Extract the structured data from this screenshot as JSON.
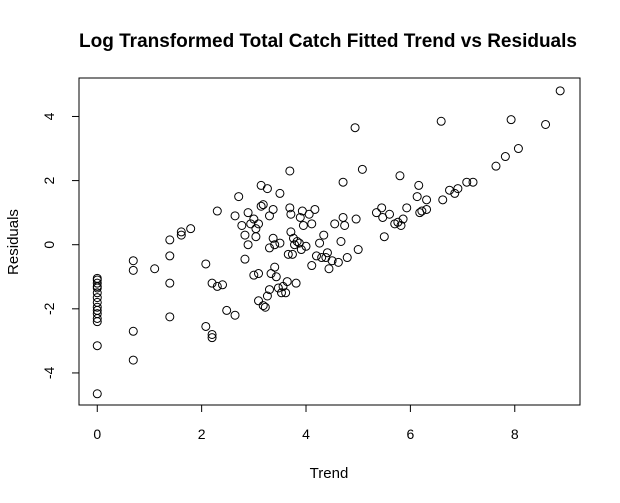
{
  "chart_data": {
    "type": "scatter",
    "title": "Log Transformed Total Catch Fitted Trend vs Residuals",
    "xlabel": "Trend",
    "ylabel": "Residuals",
    "xlim": [
      -0.35,
      9.25
    ],
    "ylim": [
      -5.0,
      5.2
    ],
    "xticks": [
      0,
      2,
      4,
      6,
      8
    ],
    "yticks": [
      -4,
      -2,
      0,
      2,
      4
    ],
    "xtick_labels": [
      "0",
      "2",
      "4",
      "6",
      "8"
    ],
    "ytick_labels": [
      "-4",
      "-2",
      "0",
      "2",
      "4"
    ],
    "grid": false,
    "marker": "open-circle",
    "series": [
      {
        "points": [
          [
            0,
            -1.05
          ],
          [
            0,
            -1.1
          ],
          [
            0,
            -1.2
          ],
          [
            0,
            -1.3
          ],
          [
            0,
            -1.35
          ],
          [
            0,
            -1.5
          ],
          [
            0,
            -1.65
          ],
          [
            0,
            -1.8
          ],
          [
            0,
            -1.95
          ],
          [
            0,
            -2.05
          ],
          [
            0,
            -2.15
          ],
          [
            0,
            -2.3
          ],
          [
            0,
            -2.4
          ],
          [
            0,
            -3.15
          ],
          [
            0,
            -4.65
          ],
          [
            0.69,
            -0.5
          ],
          [
            0.69,
            -0.8
          ],
          [
            0.69,
            -2.7
          ],
          [
            0.69,
            -3.6
          ],
          [
            1.1,
            -0.75
          ],
          [
            1.39,
            0.15
          ],
          [
            1.39,
            -0.35
          ],
          [
            1.39,
            -1.2
          ],
          [
            1.39,
            -2.25
          ],
          [
            1.61,
            0.3
          ],
          [
            1.61,
            0.4
          ],
          [
            1.79,
            0.5
          ],
          [
            2.08,
            -0.6
          ],
          [
            2.08,
            -2.55
          ],
          [
            2.2,
            -1.2
          ],
          [
            2.2,
            -2.8
          ],
          [
            2.2,
            -2.9
          ],
          [
            2.3,
            1.05
          ],
          [
            2.3,
            -1.3
          ],
          [
            2.4,
            -1.25
          ],
          [
            2.48,
            -2.05
          ],
          [
            2.64,
            0.9
          ],
          [
            2.64,
            -2.2
          ],
          [
            2.71,
            1.5
          ],
          [
            2.77,
            0.6
          ],
          [
            2.83,
            0.3
          ],
          [
            2.83,
            -0.45
          ],
          [
            2.89,
            1.0
          ],
          [
            2.89,
            0.0
          ],
          [
            2.94,
            0.65
          ],
          [
            3.0,
            0.8
          ],
          [
            3.0,
            -0.95
          ],
          [
            3.04,
            0.5
          ],
          [
            3.04,
            0.25
          ],
          [
            3.09,
            0.65
          ],
          [
            3.09,
            -0.9
          ],
          [
            3.09,
            -1.75
          ],
          [
            3.14,
            1.85
          ],
          [
            3.14,
            1.2
          ],
          [
            3.18,
            1.25
          ],
          [
            3.18,
            -1.9
          ],
          [
            3.22,
            -1.95
          ],
          [
            3.26,
            1.75
          ],
          [
            3.26,
            -1.6
          ],
          [
            3.3,
            0.9
          ],
          [
            3.3,
            -0.1
          ],
          [
            3.3,
            -1.4
          ],
          [
            3.33,
            -0.9
          ],
          [
            3.37,
            1.1
          ],
          [
            3.37,
            0.2
          ],
          [
            3.4,
            0.0
          ],
          [
            3.4,
            -0.7
          ],
          [
            3.43,
            -1.0
          ],
          [
            3.47,
            -1.35
          ],
          [
            3.5,
            1.6
          ],
          [
            3.5,
            0.05
          ],
          [
            3.53,
            -1.5
          ],
          [
            3.56,
            -1.3
          ],
          [
            3.61,
            -1.5
          ],
          [
            3.64,
            -1.15
          ],
          [
            3.66,
            -0.3
          ],
          [
            3.69,
            2.3
          ],
          [
            3.69,
            1.15
          ],
          [
            3.71,
            0.95
          ],
          [
            3.71,
            0.4
          ],
          [
            3.74,
            -0.3
          ],
          [
            3.76,
            0.2
          ],
          [
            3.78,
            0.0
          ],
          [
            3.81,
            -1.2
          ],
          [
            3.83,
            0.1
          ],
          [
            3.87,
            0.05
          ],
          [
            3.89,
            0.85
          ],
          [
            3.91,
            -0.15
          ],
          [
            3.93,
            1.05
          ],
          [
            3.95,
            0.6
          ],
          [
            4.0,
            -0.05
          ],
          [
            4.06,
            0.95
          ],
          [
            4.11,
            0.65
          ],
          [
            4.11,
            -0.65
          ],
          [
            4.17,
            1.1
          ],
          [
            4.2,
            -0.35
          ],
          [
            4.26,
            0.05
          ],
          [
            4.3,
            -0.4
          ],
          [
            4.34,
            0.3
          ],
          [
            4.38,
            -0.4
          ],
          [
            4.41,
            -0.25
          ],
          [
            4.44,
            -0.75
          ],
          [
            4.5,
            -0.5
          ],
          [
            4.55,
            0.65
          ],
          [
            4.62,
            -0.55
          ],
          [
            4.67,
            0.1
          ],
          [
            4.71,
            1.95
          ],
          [
            4.71,
            0.85
          ],
          [
            4.74,
            0.6
          ],
          [
            4.79,
            -0.4
          ],
          [
            4.94,
            3.65
          ],
          [
            4.96,
            0.8
          ],
          [
            5.0,
            -0.15
          ],
          [
            5.08,
            2.35
          ],
          [
            5.35,
            1.0
          ],
          [
            5.45,
            1.15
          ],
          [
            5.47,
            0.85
          ],
          [
            5.5,
            0.25
          ],
          [
            5.6,
            0.95
          ],
          [
            5.7,
            0.65
          ],
          [
            5.76,
            0.7
          ],
          [
            5.8,
            2.15
          ],
          [
            5.82,
            0.6
          ],
          [
            5.86,
            0.8
          ],
          [
            5.93,
            1.15
          ],
          [
            6.13,
            1.5
          ],
          [
            6.16,
            1.85
          ],
          [
            6.18,
            1.0
          ],
          [
            6.22,
            1.05
          ],
          [
            6.31,
            1.1
          ],
          [
            6.31,
            1.4
          ],
          [
            6.59,
            3.85
          ],
          [
            6.62,
            1.4
          ],
          [
            6.75,
            1.7
          ],
          [
            6.85,
            1.6
          ],
          [
            6.91,
            1.75
          ],
          [
            7.08,
            1.95
          ],
          [
            7.2,
            1.95
          ],
          [
            7.64,
            2.45
          ],
          [
            7.82,
            2.75
          ],
          [
            7.93,
            3.9
          ],
          [
            8.07,
            3.0
          ],
          [
            8.59,
            3.75
          ],
          [
            8.87,
            4.8
          ]
        ]
      }
    ]
  }
}
